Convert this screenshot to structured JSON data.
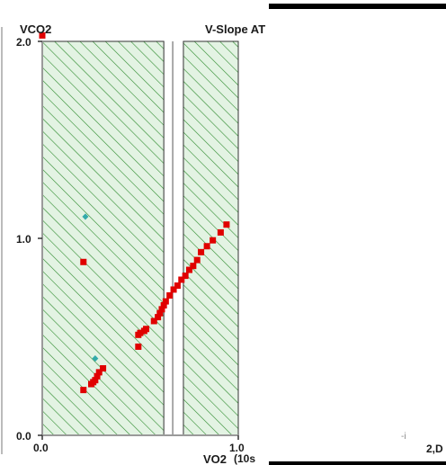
{
  "header": {
    "title": "V-Slope AT",
    "y_axis_name": "VCO2"
  },
  "footer": {
    "x_axis_name": "VO2",
    "x_unit_fragment": "(10s",
    "x_far_tick": "2,D",
    "cursor_mark": "-i"
  },
  "colors": {
    "hatch_fill": "#e3f3e3",
    "hatch_line": "#2e8b2e",
    "point": "#e00000",
    "excluded_point": "#33aaaa",
    "axis": "#9a9a9a"
  },
  "chart_data": {
    "type": "scatter",
    "title": "V-Slope AT",
    "xlabel": "VO2",
    "ylabel": "VCO2",
    "xlim": [
      0.0,
      1.0
    ],
    "ylim": [
      0.0,
      2.0
    ],
    "x_ticks": [
      "0.0",
      "1.0"
    ],
    "y_ticks": [
      "0.0",
      "1.0",
      "2.0"
    ],
    "hatched_bands": [
      [
        0.0,
        0.62
      ],
      [
        0.72,
        1.0
      ]
    ],
    "series": [
      {
        "role": "included",
        "color": "#e00000",
        "points": [
          [
            0.21,
            0.23
          ],
          [
            0.25,
            0.26
          ],
          [
            0.26,
            0.27
          ],
          [
            0.27,
            0.28
          ],
          [
            0.28,
            0.3
          ],
          [
            0.29,
            0.32
          ],
          [
            0.31,
            0.34
          ],
          [
            0.21,
            0.88
          ],
          [
            0.49,
            0.45
          ],
          [
            0.49,
            0.51
          ],
          [
            0.5,
            0.52
          ],
          [
            0.52,
            0.53
          ],
          [
            0.53,
            0.54
          ],
          [
            0.57,
            0.58
          ],
          [
            0.59,
            0.6
          ],
          [
            0.6,
            0.62
          ],
          [
            0.61,
            0.64
          ],
          [
            0.62,
            0.66
          ],
          [
            0.63,
            0.68
          ],
          [
            0.65,
            0.71
          ],
          [
            0.67,
            0.74
          ],
          [
            0.69,
            0.76
          ],
          [
            0.71,
            0.79
          ],
          [
            0.73,
            0.81
          ],
          [
            0.75,
            0.84
          ],
          [
            0.77,
            0.86
          ],
          [
            0.79,
            0.89
          ],
          [
            0.81,
            0.93
          ],
          [
            0.84,
            0.96
          ],
          [
            0.87,
            0.99
          ],
          [
            0.91,
            1.03
          ],
          [
            0.94,
            1.07
          ],
          [
            0.0,
            2.03
          ]
        ]
      },
      {
        "role": "excluded",
        "color": "#33aaaa",
        "points": [
          [
            0.22,
            1.11
          ],
          [
            0.27,
            0.39
          ]
        ]
      }
    ]
  }
}
